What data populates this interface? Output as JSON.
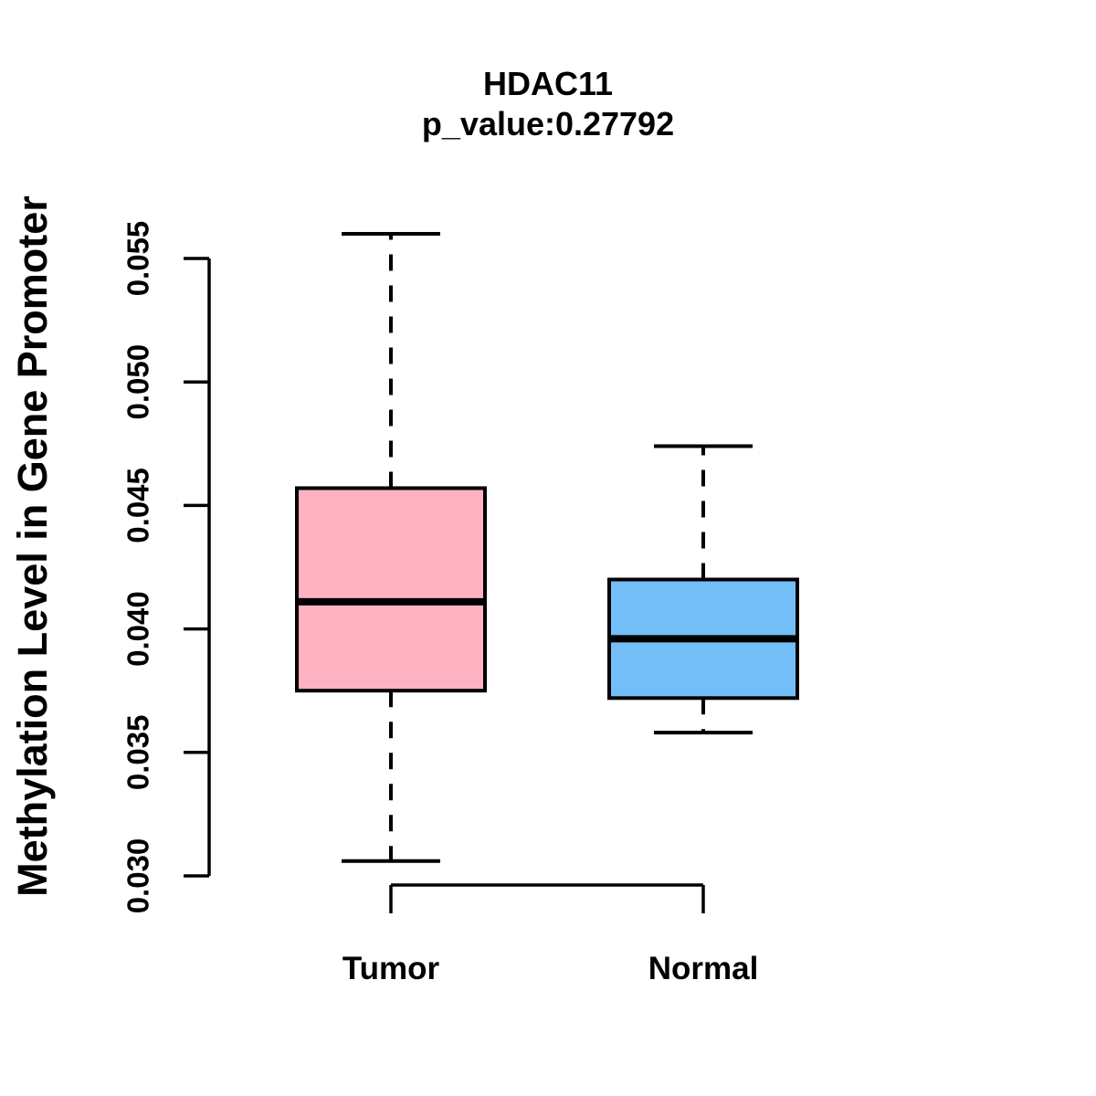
{
  "figure": {
    "title": "HDAC11",
    "subtitle": "p_value:0.27792"
  },
  "chart_data": {
    "type": "boxplot",
    "title": "HDAC11",
    "subtitle": "p_value:0.27792",
    "p_value": 0.27792,
    "xlabel": "",
    "ylabel": "Methylation Level in Gene Promoter",
    "ylim": [
      0.03,
      0.055
    ],
    "yticks": [
      0.03,
      0.035,
      0.04,
      0.045,
      0.05,
      0.055
    ],
    "ytick_labels": [
      "0.030",
      "0.035",
      "0.040",
      "0.045",
      "0.050",
      "0.055"
    ],
    "grid": false,
    "legend": "none",
    "categories": [
      "Tumor",
      "Normal"
    ],
    "series": [
      {
        "name": "Tumor",
        "fill_color": "#FFB2C1",
        "whisker_low": 0.0306,
        "q1": 0.0375,
        "median": 0.0411,
        "q3": 0.0457,
        "whisker_high": 0.056,
        "outliers": []
      },
      {
        "name": "Normal",
        "fill_color": "#74BEF8",
        "whisker_low": 0.0358,
        "q1": 0.0372,
        "median": 0.0396,
        "q3": 0.042,
        "whisker_high": 0.0474,
        "outliers": []
      }
    ],
    "colors": {
      "box_border": "#000000",
      "median_line": "#000000",
      "axis": "#000000",
      "background": "#ffffff"
    }
  }
}
